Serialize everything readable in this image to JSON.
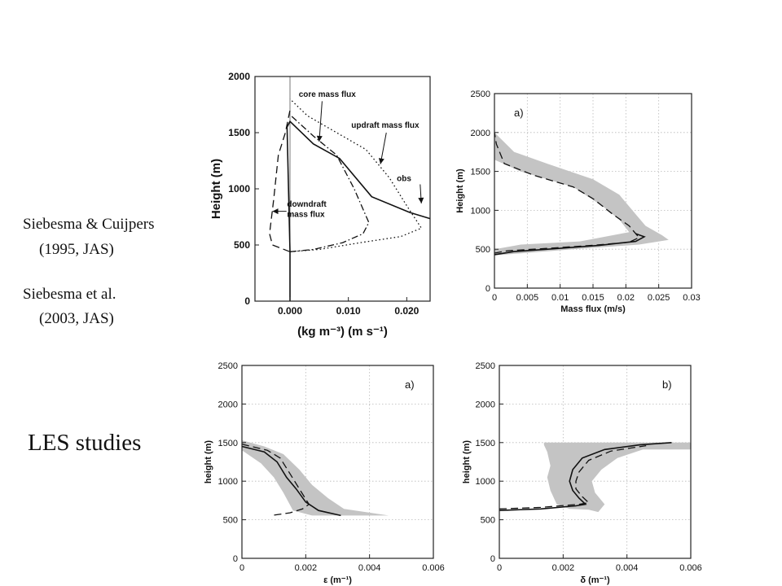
{
  "refs": {
    "ref1_line1": "Siebesma & Cuijpers",
    "ref1_line2": "(1995, JAS)",
    "ref2_line1": "Siebesma et al.",
    "ref2_line2": "(2003, JAS)"
  },
  "section_label": "LES studies",
  "chart_data": [
    {
      "id": "sc95",
      "type": "line",
      "panel_letter": "",
      "xlabel": "(kg m⁻³) (m s⁻¹)",
      "ylabel": "Height (m)",
      "xlim": [
        -0.006,
        0.024
      ],
      "ylim": [
        0,
        2000
      ],
      "xticks": [
        0.0,
        0.01,
        0.02
      ],
      "xtick_labels": [
        "0.000",
        "0.010",
        "0.020"
      ],
      "yticks": [
        0,
        500,
        1000,
        1500,
        2000
      ],
      "grid": false,
      "annotations": [
        {
          "text": "core mass flux",
          "x": 0.0015,
          "y": 1820
        },
        {
          "text": "updraft mass flux",
          "x": 0.0105,
          "y": 1545
        },
        {
          "text": "obs",
          "x": 0.0183,
          "y": 1070
        },
        {
          "text": "downdraft",
          "x": -0.0005,
          "y": 840
        },
        {
          "text": "mass flux",
          "x": -0.0005,
          "y": 750
        }
      ],
      "series": [
        {
          "style": "solid",
          "points": [
            [
              0,
              0
            ],
            [
              0,
              440
            ],
            [
              -0.0005,
              1550
            ],
            [
              0,
              1600
            ],
            [
              0.004,
              1400
            ],
            [
              0.0085,
              1270
            ],
            [
              0.014,
              930
            ],
            [
              0.0205,
              790
            ],
            [
              0.024,
              735
            ]
          ]
        },
        {
          "style": "dotdash",
          "points": [
            [
              0,
              440
            ],
            [
              0.004,
              460
            ],
            [
              0.009,
              520
            ],
            [
              0.0125,
              600
            ],
            [
              0.0135,
              700
            ],
            [
              0.011,
              1000
            ],
            [
              0.008,
              1300
            ],
            [
              0.004,
              1470
            ],
            [
              0.0002,
              1650
            ]
          ]
        },
        {
          "style": "dotted",
          "points": [
            [
              0,
              440
            ],
            [
              0.005,
              460
            ],
            [
              0.012,
              520
            ],
            [
              0.019,
              575
            ],
            [
              0.0225,
              650
            ],
            [
              0.02,
              850
            ],
            [
              0.017,
              1100
            ],
            [
              0.013,
              1350
            ],
            [
              0.008,
              1500
            ],
            [
              0.003,
              1650
            ],
            [
              0,
              1800
            ]
          ]
        },
        {
          "style": "dashed",
          "points": [
            [
              0,
              440
            ],
            [
              -0.003,
              500
            ],
            [
              -0.0035,
              600
            ],
            [
              -0.0028,
              900
            ],
            [
              -0.002,
              1300
            ],
            [
              -0.0008,
              1500
            ],
            [
              0,
              1700
            ]
          ]
        }
      ]
    },
    {
      "id": "s03a",
      "type": "line",
      "panel_letter": "a)",
      "xlabel": "Mass flux (m/s)",
      "ylabel": "Height (m)",
      "xlim": [
        0,
        0.03
      ],
      "ylim": [
        0,
        2500
      ],
      "xticks": [
        0,
        0.005,
        0.01,
        0.015,
        0.02,
        0.025,
        0.03
      ],
      "xtick_labels": [
        "0",
        "0.005",
        "0.01",
        "0.015",
        "0.02",
        "0.025",
        "0.03"
      ],
      "yticks": [
        0,
        500,
        1000,
        1500,
        2000,
        2500
      ],
      "grid": true,
      "band": [
        [
          0,
          420
        ],
        [
          0.012,
          500
        ],
        [
          0.022,
          560
        ],
        [
          0.0265,
          620
        ],
        [
          0.0255,
          680
        ],
        [
          0.023,
          800
        ],
        [
          0.0215,
          950
        ],
        [
          0.019,
          1200
        ],
        [
          0.015,
          1400
        ],
        [
          0.008,
          1600
        ],
        [
          0.003,
          1750
        ],
        [
          0,
          2000
        ],
        [
          0,
          1650
        ],
        [
          0.004,
          1500
        ],
        [
          0.012,
          1300
        ],
        [
          0.0165,
          1050
        ],
        [
          0.019,
          880
        ],
        [
          0.0205,
          720
        ],
        [
          0.013,
          600
        ],
        [
          0.004,
          560
        ],
        [
          0,
          500
        ]
      ],
      "series": [
        {
          "style": "dashed",
          "points": [
            [
              0,
              450
            ],
            [
              0.002,
              480
            ],
            [
              0.008,
              510
            ],
            [
              0.015,
              550
            ],
            [
              0.0205,
              590
            ],
            [
              0.022,
              650
            ],
            [
              0.0205,
              800
            ],
            [
              0.018,
              950
            ],
            [
              0.015,
              1150
            ],
            [
              0.012,
              1300
            ],
            [
              0.006,
              1450
            ],
            [
              0.0015,
              1600
            ],
            [
              0.0003,
              1850
            ],
            [
              0,
              2000
            ]
          ]
        },
        {
          "style": "solid",
          "points": [
            [
              0,
              430
            ],
            [
              0.003,
              470
            ],
            [
              0.009,
              505
            ],
            [
              0.016,
              550
            ],
            [
              0.0215,
              600
            ],
            [
              0.0228,
              660
            ],
            [
              0.0215,
              700
            ]
          ]
        }
      ]
    },
    {
      "id": "s03b_eps",
      "type": "line",
      "panel_letter": "a)",
      "xlabel": "ε (m⁻¹)",
      "ylabel": "height (m)",
      "xlim": [
        0,
        0.006
      ],
      "ylim": [
        0,
        2500
      ],
      "xticks": [
        0,
        0.002,
        0.004,
        0.006
      ],
      "xtick_labels": [
        "0",
        "0.002",
        "0.004",
        "0.006"
      ],
      "yticks": [
        0,
        500,
        1000,
        1500,
        2000,
        2500
      ],
      "grid": true,
      "band": [
        [
          0,
          1530
        ],
        [
          0.0007,
          1450
        ],
        [
          0.0013,
          1350
        ],
        [
          0.0018,
          1150
        ],
        [
          0.0022,
          950
        ],
        [
          0.0027,
          780
        ],
        [
          0.0032,
          640
        ],
        [
          0.0046,
          555
        ],
        [
          0.0022,
          555
        ],
        [
          0.0016,
          620
        ],
        [
          0.0013,
          850
        ],
        [
          0.001,
          1050
        ],
        [
          0.0006,
          1230
        ],
        [
          0,
          1400
        ]
      ],
      "series": [
        {
          "style": "solid",
          "points": [
            [
              0,
              1450
            ],
            [
              0.0007,
              1380
            ],
            [
              0.0011,
              1250
            ],
            [
              0.0014,
              1050
            ],
            [
              0.0017,
              900
            ],
            [
              0.002,
              730
            ],
            [
              0.0024,
              620
            ],
            [
              0.0031,
              555
            ]
          ]
        },
        {
          "style": "dashed",
          "points": [
            [
              0,
              1480
            ],
            [
              0.0008,
              1400
            ],
            [
              0.0012,
              1300
            ],
            [
              0.0015,
              1100
            ],
            [
              0.0018,
              900
            ],
            [
              0.0021,
              700
            ],
            [
              0.0019,
              640
            ],
            [
              0.0015,
              590
            ],
            [
              0.001,
              560
            ]
          ]
        }
      ]
    },
    {
      "id": "s03b_del",
      "type": "line",
      "panel_letter": "b)",
      "xlabel": "δ (m⁻¹)",
      "ylabel": "height (m)",
      "xlim": [
        0,
        0.006
      ],
      "ylim": [
        0,
        2500
      ],
      "xticks": [
        0,
        0.002,
        0.004,
        0.006
      ],
      "xtick_labels": [
        "0",
        "0.002",
        "0.004",
        "0.006"
      ],
      "yticks": [
        0,
        500,
        1000,
        1500,
        2000,
        2500
      ],
      "grid": true,
      "band": [
        [
          0.0014,
          1500
        ],
        [
          0.006,
          1500
        ],
        [
          0.006,
          1410
        ],
        [
          0.0045,
          1410
        ],
        [
          0.0037,
          1300
        ],
        [
          0.0032,
          1150
        ],
        [
          0.0029,
          1000
        ],
        [
          0.003,
          850
        ],
        [
          0.0033,
          700
        ],
        [
          0.0031,
          600
        ],
        [
          0.0028,
          630
        ],
        [
          0.0022,
          640
        ],
        [
          0.0018,
          700
        ],
        [
          0.0016,
          880
        ],
        [
          0.0015,
          1050
        ],
        [
          0.0016,
          1200
        ],
        [
          0.0015,
          1380
        ],
        [
          0.0014,
          1470
        ]
      ],
      "series": [
        {
          "style": "solid",
          "points": [
            [
              0,
              620
            ],
            [
              0.0013,
              640
            ],
            [
              0.0024,
              680
            ],
            [
              0.0027,
              700
            ],
            [
              0.0025,
              780
            ],
            [
              0.0023,
              880
            ],
            [
              0.0022,
              1000
            ],
            [
              0.0023,
              1150
            ],
            [
              0.0026,
              1300
            ],
            [
              0.0033,
              1410
            ],
            [
              0.0044,
              1470
            ],
            [
              0.0054,
              1500
            ]
          ]
        },
        {
          "style": "dashed",
          "points": [
            [
              0,
              640
            ],
            [
              0.0013,
              660
            ],
            [
              0.0025,
              700
            ],
            [
              0.0028,
              720
            ],
            [
              0.0026,
              800
            ],
            [
              0.0024,
              900
            ],
            [
              0.0024,
              1000
            ],
            [
              0.0025,
              1120
            ],
            [
              0.0028,
              1270
            ],
            [
              0.0035,
              1390
            ],
            [
              0.0046,
              1460
            ]
          ]
        }
      ]
    }
  ]
}
